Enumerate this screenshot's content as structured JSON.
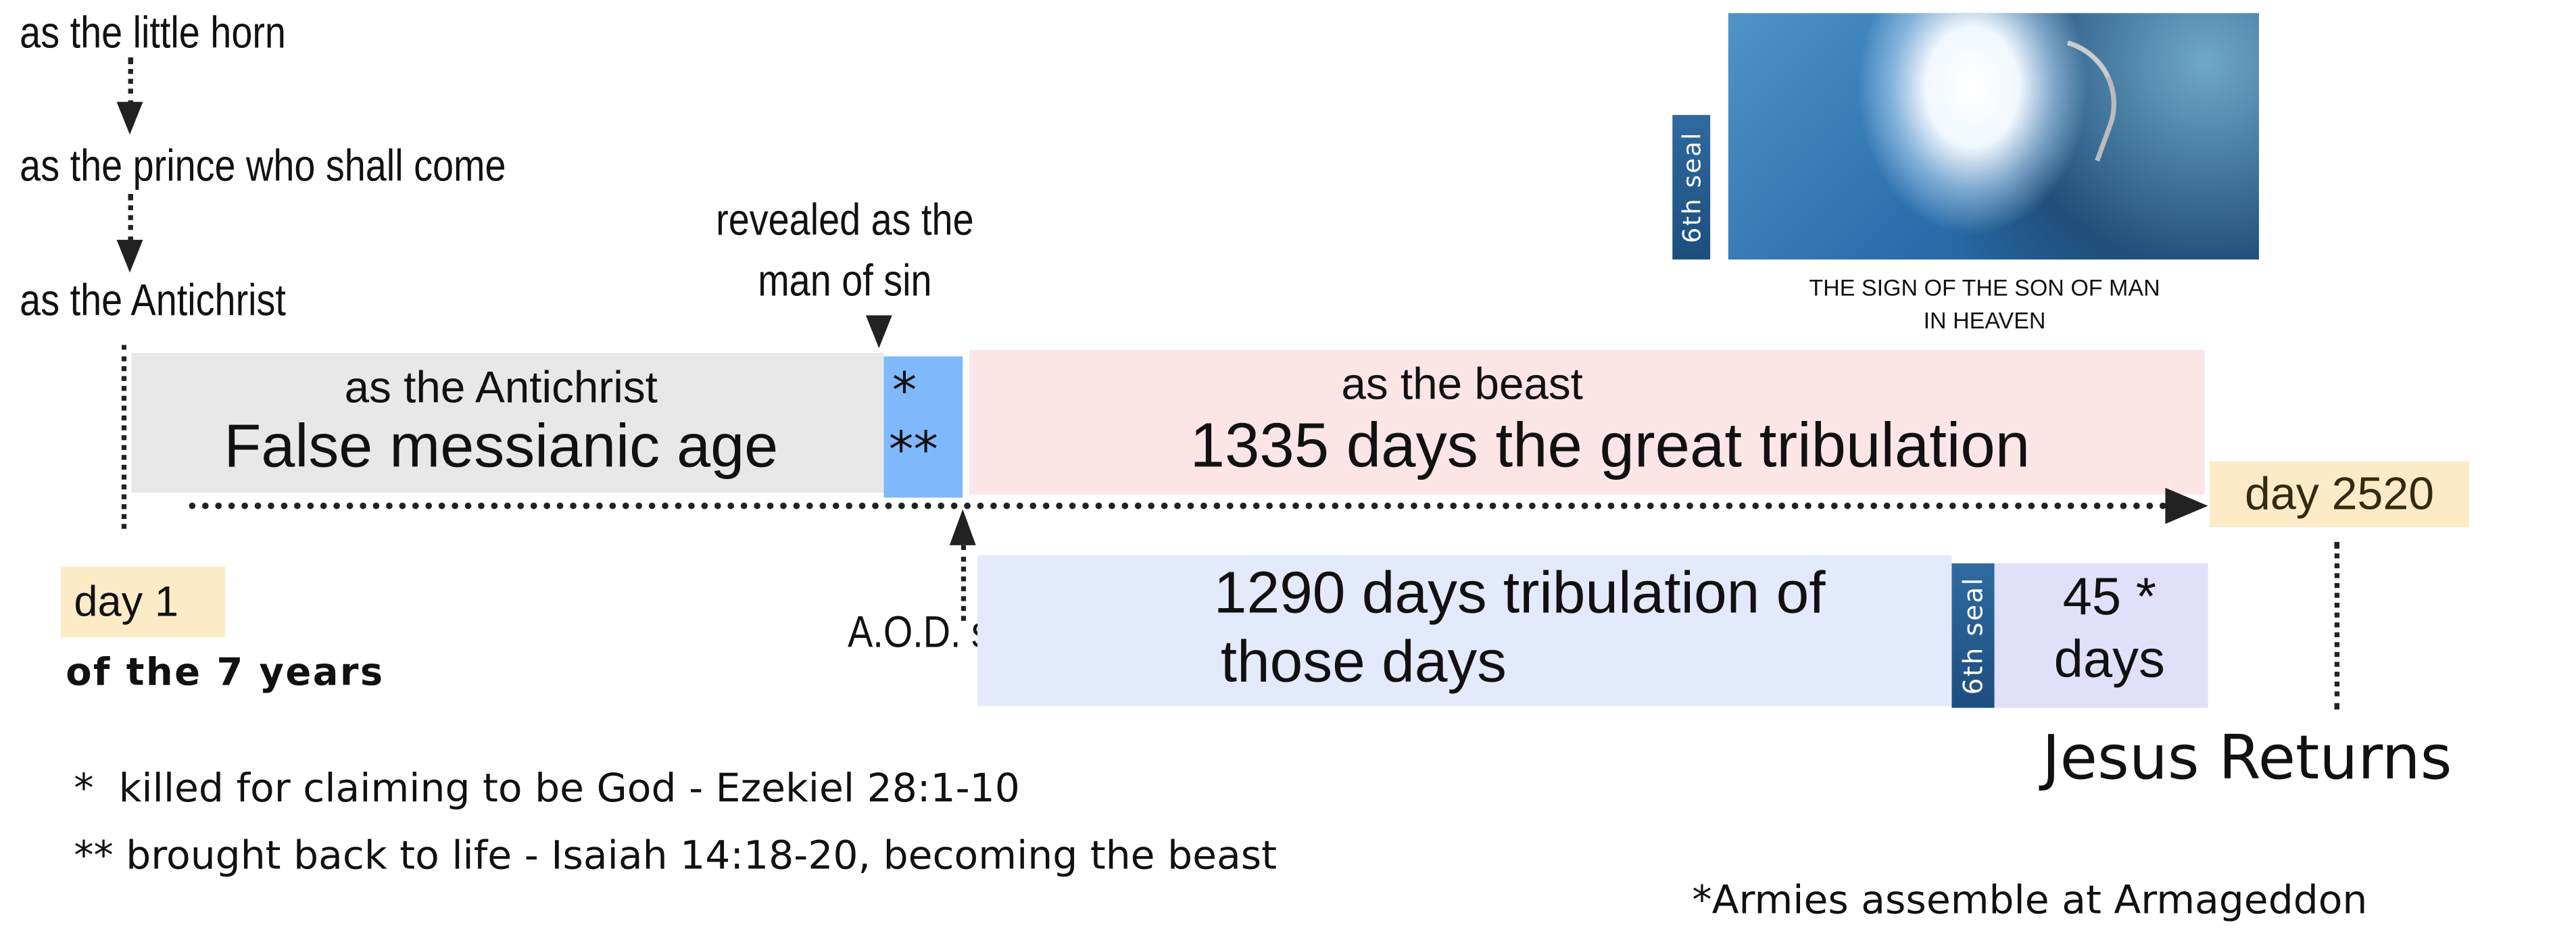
{
  "progression": {
    "step1": "as the little horn",
    "step2": "as the prince who shall come",
    "step3": "as the Antichrist"
  },
  "revealed": {
    "line1": "revealed as the",
    "line2": "man of sin"
  },
  "false_age": {
    "subtitle": "as the Antichrist",
    "title": "False messianic age",
    "color": "#e8e8e8"
  },
  "marker": {
    "single": "*",
    "double": "**",
    "color": "#7fb8fb"
  },
  "great_tribulation": {
    "subtitle": "as the beast",
    "title": "1335 days the great tribulation",
    "color": "#fbe5e6"
  },
  "day_end": {
    "label": "day 2520",
    "color": "#fdebc8"
  },
  "day_start": {
    "label": "day 1",
    "caption": "of the 7 years",
    "color": "#fdebc8"
  },
  "aod": {
    "label": "A.O.D. setup"
  },
  "tribulation": {
    "line1": "1290 days tribulation of",
    "line2": "those days",
    "color": "#e3eafb"
  },
  "seal_label": "6th seal",
  "final_days": {
    "line1": "45 *",
    "line2": "days",
    "color": "#e0e0fb"
  },
  "jesus_returns": "Jesus Returns",
  "image": {
    "seal_label": "6th seal",
    "caption_line1": "THE SIGN OF THE SON OF MAN",
    "caption_line2": "IN HEAVEN"
  },
  "footnotes": {
    "note1_mark": "*",
    "note1": "killed for claiming to be God - Ezekiel 28:1-10",
    "note2_mark": "**",
    "note2": "brought back to life - Isaiah 14:18-20, becoming the beast",
    "note3": "*Armies assemble at Armageddon"
  }
}
